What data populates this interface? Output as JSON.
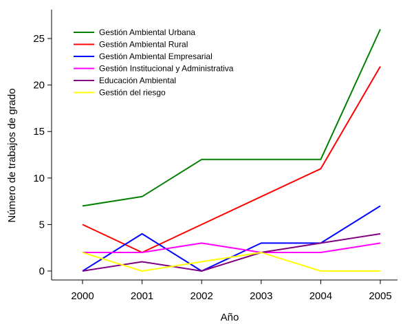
{
  "chart_data": {
    "type": "line",
    "title": "",
    "xlabel": "Año",
    "ylabel": "Número de trabajos de grado",
    "x": [
      2000,
      2001,
      2002,
      2003,
      2004,
      2005
    ],
    "x_tick_labels": [
      "2000",
      "2001",
      "2002",
      "2003",
      "2004",
      "2005"
    ],
    "y_ticks": [
      0,
      5,
      10,
      15,
      20,
      25
    ],
    "y_tick_labels": [
      "0",
      "5",
      "10",
      "15",
      "20",
      "25"
    ],
    "xlim": [
      1999.55,
      2005.5
    ],
    "ylim": [
      -0.5,
      28.5
    ],
    "grid": false,
    "legend_position": "top-left",
    "series": [
      {
        "name": "Gestión Ambiental Urbana",
        "color": "#008000",
        "values": [
          7,
          8,
          12,
          12,
          12,
          26
        ]
      },
      {
        "name": "Gestión Ambiental Rural",
        "color": "#ff0000",
        "values": [
          5,
          2,
          5,
          8,
          11,
          22
        ]
      },
      {
        "name": "Gestión Ambiental Empresarial",
        "color": "#0000ff",
        "values": [
          0,
          4,
          0,
          3,
          3,
          7
        ]
      },
      {
        "name": "Gestión Institucional y Administrativa",
        "color": "#ff00ff",
        "values": [
          2,
          2,
          3,
          2,
          2,
          3
        ]
      },
      {
        "name": "Educación Ambiental",
        "color": "#800080",
        "values": [
          0,
          1,
          0,
          2,
          3,
          4
        ]
      },
      {
        "name": "Gestión del riesgo",
        "color": "#ffff00",
        "values": [
          2,
          0,
          1,
          2,
          0,
          0
        ]
      }
    ]
  }
}
